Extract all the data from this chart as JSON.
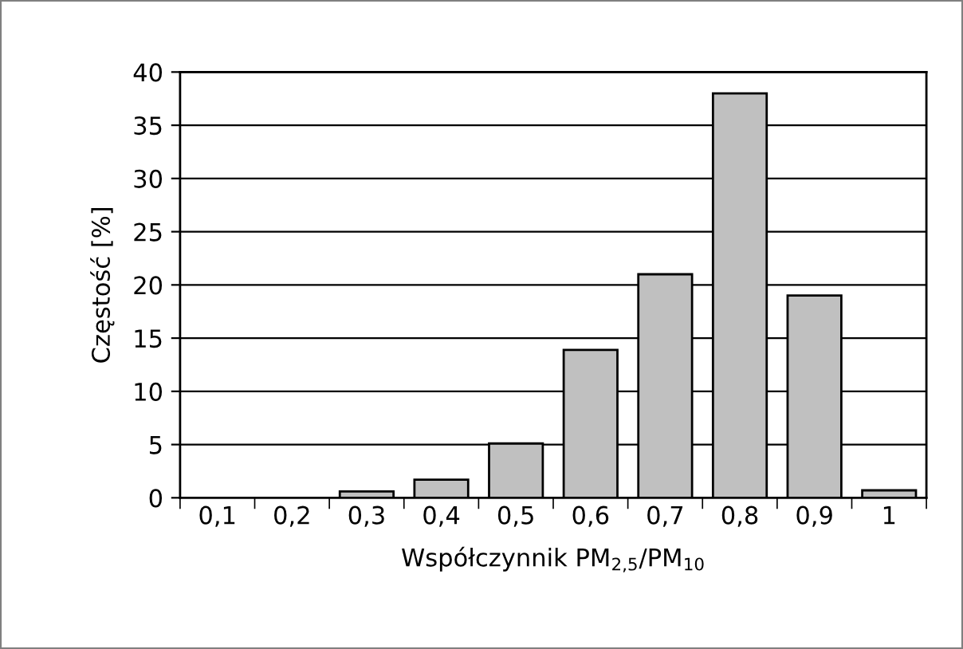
{
  "chart_data": {
    "type": "bar",
    "categories": [
      "0,1",
      "0,2",
      "0,3",
      "0,4",
      "0,5",
      "0,6",
      "0,7",
      "0,8",
      "0,9",
      "1"
    ],
    "values": [
      0,
      0,
      0.6,
      1.7,
      5.1,
      13.9,
      21,
      38,
      19,
      0.7
    ],
    "color": "#c0c0c0",
    "xlabel": "Współczynnik PM$_{2,5}$/PM$_{10}$",
    "ylabel": "Częstość [%]",
    "ylim": [
      0,
      40
    ],
    "yticks": [
      0,
      5,
      10,
      15,
      20,
      25,
      30,
      35,
      40
    ],
    "grid": "y",
    "legend": false
  }
}
